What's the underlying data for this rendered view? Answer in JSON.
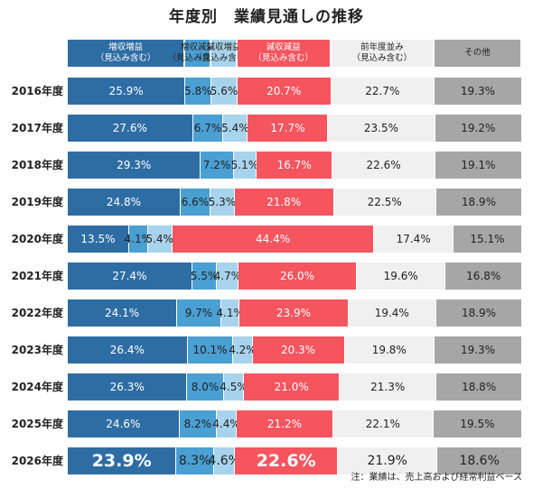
{
  "title": "年度別　業績見通しの推移",
  "footnote": "注：業績は、売上高および経常利益ベース",
  "colors": {
    "inc_inc": "#2e6da4",
    "inc_dec": "#4a9fd3",
    "dec_inc": "#a8d3ec",
    "dec_dec": "#f4555f",
    "flat": "#f0f0f0",
    "other": "#a6a6a6"
  },
  "chart_data": {
    "type": "bar",
    "orientation": "horizontal-stacked-100",
    "title": "年度別　業績見通しの推移",
    "categories": [
      "2016年度",
      "2017年度",
      "2018年度",
      "2019年度",
      "2020年度",
      "2021年度",
      "2022年度",
      "2023年度",
      "2024年度",
      "2025年度",
      "2026年度"
    ],
    "series": [
      {
        "name": [
          "増収増益",
          "（見込み含む）"
        ],
        "key": "inc_inc",
        "values": [
          25.9,
          27.6,
          29.3,
          24.8,
          13.5,
          27.4,
          24.1,
          26.4,
          26.3,
          24.6,
          23.9
        ]
      },
      {
        "name": [
          "増収減益",
          "（見込み含む）"
        ],
        "key": "inc_dec",
        "values": [
          5.8,
          6.7,
          7.2,
          6.6,
          4.1,
          5.5,
          9.7,
          10.1,
          8.0,
          8.2,
          8.3
        ]
      },
      {
        "name": [
          "減収増益",
          "（見込み含む）"
        ],
        "key": "dec_inc",
        "values": [
          5.6,
          5.4,
          5.1,
          5.3,
          5.4,
          4.7,
          4.1,
          4.2,
          4.5,
          4.4,
          4.6
        ]
      },
      {
        "name": [
          "減収減益",
          "（見込み含む）"
        ],
        "key": "dec_dec",
        "values": [
          20.7,
          17.7,
          16.7,
          21.8,
          44.4,
          26.0,
          23.9,
          20.3,
          21.0,
          21.2,
          22.6
        ]
      },
      {
        "name": [
          "前年度並み",
          "（見込み含む）"
        ],
        "key": "flat",
        "values": [
          22.7,
          23.5,
          22.6,
          22.5,
          17.4,
          19.6,
          19.4,
          19.8,
          21.3,
          22.1,
          21.9
        ]
      },
      {
        "name": [
          "その他"
        ],
        "key": "other",
        "values": [
          19.3,
          19.2,
          19.1,
          18.9,
          15.1,
          16.8,
          18.9,
          19.3,
          18.8,
          19.5,
          18.6
        ]
      }
    ],
    "label_format": "{v}%",
    "emphasized_category": "2026年度",
    "legend": "top",
    "grid": false
  }
}
